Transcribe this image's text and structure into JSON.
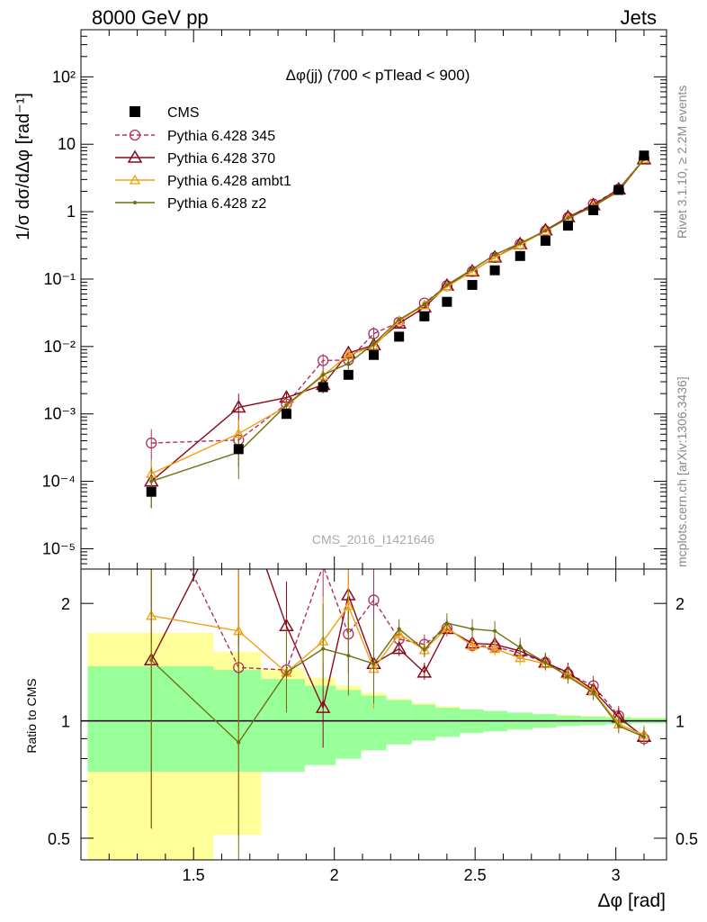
{
  "header": {
    "left": "8000 GeV pp",
    "right": "Jets"
  },
  "side_text": {
    "rivet": "Rivet 3.1.10, ≥ 2.2M events",
    "mcplots": "mcplots.cern.ch [arXiv:1306.3436]"
  },
  "chart_data": {
    "type": "line",
    "title": "Δφ(jj) (700 < pTlead <  900)",
    "watermark": "CMS_2016_I1421646",
    "xlabel": "Δφ [rad]",
    "ylabel_main": "1/σ dσ/dΔφ [rad⁻¹]",
    "ylabel_ratio": "Ratio to CMS",
    "xlim": [
      1.1,
      3.18
    ],
    "ylim_main_log": [
      5e-06,
      500
    ],
    "ylim_ratio_log": [
      0.44,
      2.45
    ],
    "x_ticks": [
      "1.5",
      "2",
      "2.5",
      "3"
    ],
    "y_ticks_main": [
      "10⁻⁵",
      "10⁻⁴",
      "10⁻³",
      "10⁻²",
      "10⁻¹",
      "1",
      "10",
      "10²"
    ],
    "y_ticks_ratio": [
      "0.5",
      "1",
      "2"
    ],
    "x": [
      1.35,
      1.66,
      1.83,
      1.96,
      2.05,
      2.14,
      2.23,
      2.32,
      2.4,
      2.49,
      2.57,
      2.66,
      2.75,
      2.83,
      2.92,
      3.01,
      3.1
    ],
    "cms": {
      "name": "CMS",
      "values": [
        7e-05,
        0.0003,
        0.001,
        0.0025,
        0.0038,
        0.0075,
        0.014,
        0.028,
        0.046,
        0.082,
        0.135,
        0.22,
        0.37,
        0.62,
        1.05,
        2.1,
        6.8
      ],
      "band_stat_lo": [
        0.74,
        0.74,
        0.74,
        0.77,
        0.8,
        0.84,
        0.87,
        0.89,
        0.91,
        0.93,
        0.94,
        0.95,
        0.96,
        0.97,
        0.975,
        0.98,
        0.985
      ],
      "band_stat_hi": [
        1.38,
        1.35,
        1.28,
        1.23,
        1.2,
        1.16,
        1.13,
        1.1,
        1.08,
        1.07,
        1.06,
        1.05,
        1.04,
        1.03,
        1.025,
        1.02,
        1.015
      ],
      "band_tot_lo": [
        0.36,
        0.51,
        0.79,
        0.8,
        0.82,
        0.85,
        0.88,
        0.9,
        0.92,
        0.935,
        0.945,
        0.955,
        0.965,
        0.975,
        0.98,
        0.985,
        0.99
      ],
      "band_tot_hi": [
        1.68,
        1.5,
        1.36,
        1.29,
        1.23,
        1.18,
        1.14,
        1.11,
        1.09,
        1.07,
        1.06,
        1.05,
        1.04,
        1.035,
        1.03,
        1.025,
        1.02
      ]
    },
    "series": [
      {
        "name": "Pythia 6.428 345",
        "color": "#b03060",
        "marker": "circle",
        "dashed": true,
        "values": [
          0.00037,
          0.00041,
          0.0014,
          0.0062,
          0.0063,
          0.0155,
          0.023,
          0.044,
          0.08,
          0.13,
          0.21,
          0.33,
          0.52,
          0.82,
          1.3,
          2.15,
          6.1
        ],
        "ratio": [
          5.3,
          1.37,
          1.35,
          2.5,
          1.67,
          2.04,
          1.62,
          1.57,
          1.73,
          1.56,
          1.55,
          1.49,
          1.41,
          1.32,
          1.23,
          1.03,
          0.9
        ]
      },
      {
        "name": "Pythia 6.428 370",
        "color": "#8b0a1a",
        "marker": "triangle",
        "dashed": false,
        "values": [
          0.0001,
          0.00125,
          0.00175,
          0.0027,
          0.008,
          0.0105,
          0.022,
          0.038,
          0.08,
          0.13,
          0.21,
          0.33,
          0.53,
          0.83,
          1.25,
          2.15,
          6.0
        ],
        "ratio": [
          1.43,
          4.2,
          1.75,
          1.08,
          2.1,
          1.4,
          1.53,
          1.33,
          1.72,
          1.58,
          1.57,
          1.51,
          1.41,
          1.33,
          1.2,
          1.02,
          0.91
        ]
      },
      {
        "name": "Pythia 6.428 ambt1",
        "color": "#f0a010",
        "marker": "triangle-open",
        "dashed": false,
        "values": [
          0.00013,
          0.00051,
          0.0013,
          0.0037,
          0.0075,
          0.01,
          0.024,
          0.041,
          0.077,
          0.13,
          0.21,
          0.32,
          0.52,
          0.8,
          1.2,
          2.05,
          6.1
        ],
        "ratio": [
          1.86,
          1.7,
          1.33,
          1.6,
          1.97,
          1.36,
          1.67,
          1.52,
          1.73,
          1.56,
          1.53,
          1.45,
          1.4,
          1.31,
          1.19,
          0.98,
          0.92
        ]
      },
      {
        "name": "Pythia 6.428 z2",
        "color": "#707010",
        "marker": "dot",
        "dashed": false,
        "values": [
          0.0001,
          0.00027,
          0.00135,
          0.0038,
          0.0056,
          0.011,
          0.025,
          0.042,
          0.082,
          0.14,
          0.23,
          0.34,
          0.52,
          0.8,
          1.2,
          2.0,
          6.0
        ],
        "ratio": [
          1.43,
          0.88,
          1.33,
          1.53,
          1.47,
          1.4,
          1.72,
          1.52,
          1.78,
          1.72,
          1.7,
          1.54,
          1.41,
          1.3,
          1.18,
          0.97,
          0.91
        ]
      }
    ]
  }
}
